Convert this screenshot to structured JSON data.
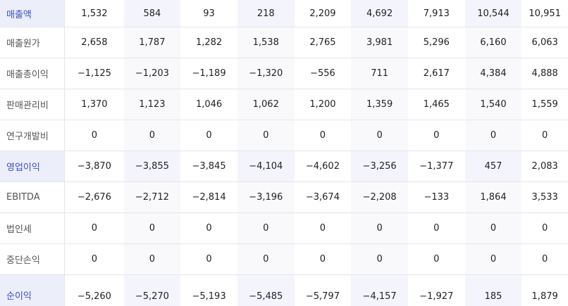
{
  "table": {
    "rows": [
      {
        "label": "매출액",
        "highlight": true,
        "values": [
          "1,532",
          "584",
          "93",
          "218",
          "2,209",
          "4,692",
          "7,913",
          "10,544",
          "10,951"
        ]
      },
      {
        "label": "매출원가",
        "highlight": false,
        "values": [
          "2,658",
          "1,787",
          "1,282",
          "1,538",
          "2,765",
          "3,981",
          "5,296",
          "6,160",
          "6,063"
        ]
      },
      {
        "label": "매출총이익",
        "highlight": false,
        "values": [
          "−1,125",
          "−1,203",
          "−1,189",
          "−1,320",
          "−556",
          "711",
          "2,617",
          "4,384",
          "4,888"
        ]
      },
      {
        "label": "판매관리비",
        "highlight": false,
        "values": [
          "1,370",
          "1,123",
          "1,046",
          "1,062",
          "1,200",
          "1,359",
          "1,465",
          "1,540",
          "1,559"
        ]
      },
      {
        "label": "연구개발비",
        "highlight": false,
        "values": [
          "0",
          "0",
          "0",
          "0",
          "0",
          "0",
          "0",
          "0",
          "0"
        ]
      },
      {
        "label": "영업이익",
        "highlight": true,
        "values": [
          "−3,870",
          "−3,855",
          "−3,845",
          "−4,104",
          "−4,602",
          "−3,256",
          "−1,377",
          "457",
          "2,083"
        ]
      },
      {
        "label": "EBITDA",
        "highlight": false,
        "values": [
          "−2,676",
          "−2,712",
          "−2,814",
          "−3,196",
          "−3,674",
          "−2,208",
          "−133",
          "1,864",
          "3,533"
        ]
      },
      {
        "label": "법인세",
        "highlight": false,
        "values": [
          "0",
          "0",
          "0",
          "0",
          "0",
          "0",
          "0",
          "0",
          "0"
        ]
      },
      {
        "label": "중단손익",
        "highlight": false,
        "values": [
          "0",
          "0",
          "0",
          "0",
          "0",
          "0",
          "0",
          "0",
          "0"
        ]
      },
      {
        "label": "순이익",
        "highlight": true,
        "values": [
          "−5,260",
          "−5,270",
          "−5,193",
          "−5,485",
          "−5,797",
          "−4,157",
          "−1,927",
          "185",
          "1,879"
        ]
      }
    ]
  }
}
